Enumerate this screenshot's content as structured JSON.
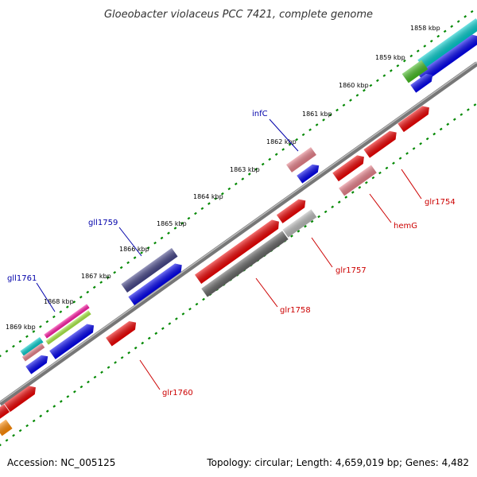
{
  "title": "Gloeobacter violaceus PCC 7421, complete genome",
  "footer": {
    "accession": "Accession: NC_005125",
    "summary": "Topology: circular; Length: 4,659,019 bp; Genes: 4,482"
  },
  "ticks": [
    {
      "label": "1858 kbp",
      "kbp": 1858
    },
    {
      "label": "1859 kbp",
      "kbp": 1859
    },
    {
      "label": "1860 kbp",
      "kbp": 1860
    },
    {
      "label": "1861 kbp",
      "kbp": 1861
    },
    {
      "label": "1862 kbp",
      "kbp": 1862
    },
    {
      "label": "1863 kbp",
      "kbp": 1863
    },
    {
      "label": "1864 kbp",
      "kbp": 1864
    },
    {
      "label": "1865 kbp",
      "kbp": 1865
    },
    {
      "label": "1866 kbp",
      "kbp": 1866
    },
    {
      "label": "1867 kbp",
      "kbp": 1867
    },
    {
      "label": "1868 kbp",
      "kbp": 1868
    },
    {
      "label": "1869 kbp",
      "kbp": 1869
    }
  ],
  "gene_labels": [
    {
      "name": "infC",
      "strand": "forward",
      "color": "#0000aa"
    },
    {
      "name": "gll1759",
      "strand": "forward",
      "color": "#0000aa"
    },
    {
      "name": "gll1761",
      "strand": "forward",
      "color": "#0000aa"
    },
    {
      "name": "glr1754",
      "strand": "reverse",
      "color": "#cc0000"
    },
    {
      "name": "hemG",
      "strand": "reverse",
      "color": "#cc0000"
    },
    {
      "name": "glr1757",
      "strand": "reverse",
      "color": "#cc0000"
    },
    {
      "name": "glr1758",
      "strand": "reverse",
      "color": "#cc0000"
    },
    {
      "name": "glr1760",
      "strand": "reverse",
      "color": "#cc0000"
    }
  ],
  "colors": {
    "backbone": "#888888",
    "ruler_dots": "#008800",
    "forward_cds": "#0000ee",
    "reverse_cds": "#ee0000",
    "gene": "#00cccc",
    "rna": "#44bb22",
    "pseudo": "#e8808a",
    "dark_gene": "#444488",
    "grey_gene": "#666666"
  }
}
